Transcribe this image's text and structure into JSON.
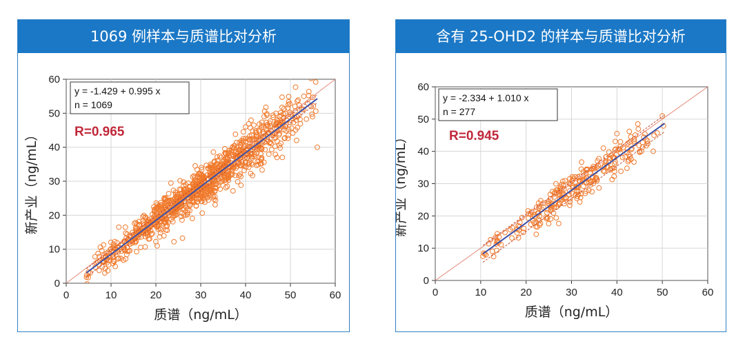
{
  "panels": [
    {
      "title": "1069 例样本与质谱比对分析",
      "equation": "y = -1.429  +  0.995  x",
      "n_label": "n = 1069",
      "r_label": "R=0.965",
      "r_color": "#c0283a"
    },
    {
      "title": "含有 25-OHD2 的样本与质谱比对分析",
      "equation": "y = -2.334  +  1.010  x",
      "n_label": "n = 277",
      "r_label": "R=0.945",
      "r_color": "#c0283a"
    }
  ],
  "chart_data": [
    {
      "type": "scatter",
      "title": "",
      "xlabel": "质谱（ng/mL）",
      "ylabel": "新产业（ng/mL）",
      "xlim": [
        0,
        60
      ],
      "ylim": [
        0,
        60
      ],
      "xticks": [
        0,
        10,
        20,
        30,
        40,
        50,
        60
      ],
      "yticks": [
        0,
        10,
        20,
        30,
        40,
        50,
        60
      ],
      "n_points": 1069,
      "x_range": [
        4.5,
        56
      ],
      "spread": 2.8,
      "outliers": [
        [
          4.5,
          1.8
        ],
        [
          53,
          55
        ],
        [
          56,
          40
        ],
        [
          43,
          36
        ],
        [
          47,
          37
        ],
        [
          40,
          46
        ],
        [
          35,
          33
        ]
      ],
      "regression": {
        "intercept": -1.429,
        "slope": 0.995,
        "x_range": [
          4.5,
          56
        ]
      },
      "confidence_band": 1.2,
      "identity_line": true,
      "colors": {
        "points": "#f07a2c",
        "regression": "#3a4fa8",
        "band": "#c24a2e",
        "identity": "#e58a7a"
      },
      "grid": true
    },
    {
      "type": "scatter",
      "title": "",
      "xlabel": "质谱（ng/mL）",
      "ylabel": "新产业（ng/mL）",
      "xlim": [
        0,
        60
      ],
      "ylim": [
        0,
        60
      ],
      "xticks": [
        0,
        10,
        20,
        30,
        40,
        50,
        60
      ],
      "yticks": [
        0,
        10,
        20,
        30,
        40,
        50,
        60
      ],
      "n_points": 277,
      "x_range": [
        10.5,
        50.5
      ],
      "spread": 2.4,
      "outliers": [
        [
          50,
          51
        ],
        [
          40,
          45.5
        ],
        [
          10.5,
          7.5
        ],
        [
          45,
          40
        ],
        [
          37,
          41
        ],
        [
          33,
          27
        ]
      ],
      "regression": {
        "intercept": -2.334,
        "slope": 1.01,
        "x_range": [
          10.5,
          50.5
        ]
      },
      "confidence_band": 2.6,
      "identity_line": true,
      "colors": {
        "points": "#f07a2c",
        "regression": "#3a4fa8",
        "band": "#c24a2e",
        "identity": "#e58a7a"
      },
      "grid": true
    }
  ]
}
